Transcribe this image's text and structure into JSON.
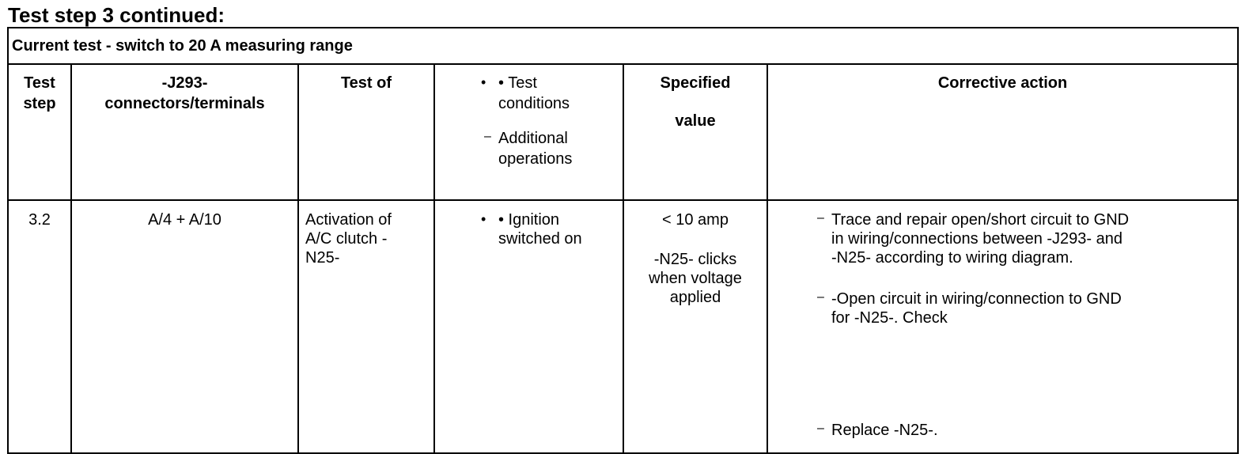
{
  "title": "Test step 3 continued:",
  "section": "Current test - switch to 20 A measuring range",
  "headers": {
    "test_step": [
      "Test",
      "step"
    ],
    "connectors": [
      "-J293-",
      "connectors/terminals"
    ],
    "test_of": "Test of",
    "conditions_bullet": [
      "• Test",
      "conditions"
    ],
    "conditions_dash": [
      "Additional",
      "operations"
    ],
    "specified": [
      "Specified",
      "value"
    ],
    "corrective": "Corrective action"
  },
  "row": {
    "step": "3.2",
    "connectors": "A/4 + A/10",
    "test_of": [
      "Activation of",
      "A/C clutch -",
      "N25-"
    ],
    "conditions": [
      "• Ignition",
      "switched on"
    ],
    "specified_1": "< 10 amp",
    "specified_2": [
      "-N25- clicks",
      "when voltage",
      "applied"
    ],
    "actions": [
      [
        "Trace and repair open/short circuit to GND",
        "in wiring/connections between -J293- and",
        "-N25- according to wiring diagram."
      ],
      [
        "-Open circuit in wiring/connection to GND",
        "for -N25-. Check"
      ],
      [
        "Replace -N25-."
      ]
    ]
  }
}
